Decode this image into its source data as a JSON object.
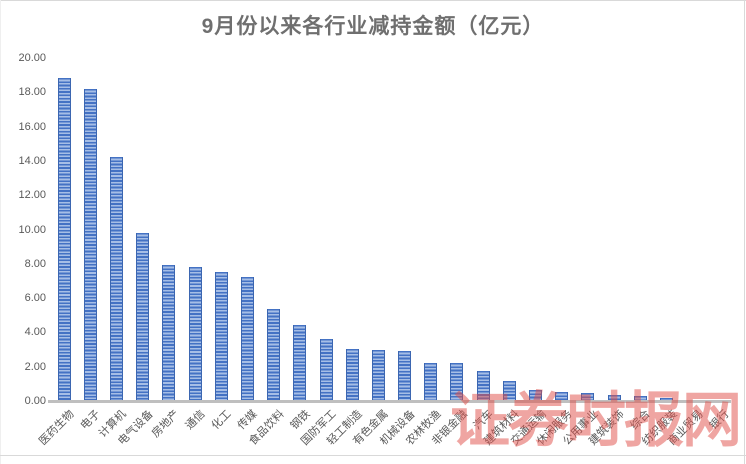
{
  "window": {
    "background": "#ffffff",
    "border_color": "#d9d9d9"
  },
  "chart_data": {
    "type": "bar",
    "title": "9月份以来各行业减持金额（亿元）",
    "title_color": "#6f6f6f",
    "xlabel": "",
    "ylabel": "",
    "categories": [
      "医药生物",
      "电子",
      "计算机",
      "电气设备",
      "房地产",
      "通信",
      "化工",
      "传媒",
      "食品饮料",
      "钢铁",
      "国防军工",
      "轻工制造",
      "有色金属",
      "机械设备",
      "农林牧渔",
      "非银金融",
      "汽车",
      "建筑材料",
      "交通运输",
      "休闲服务",
      "公用事业",
      "建筑装饰",
      "综合",
      "纺织服装",
      "商业贸易",
      "银行"
    ],
    "values": [
      18.85,
      18.2,
      14.2,
      9.8,
      7.95,
      7.8,
      7.5,
      7.25,
      5.35,
      4.45,
      3.6,
      3.05,
      3.0,
      2.9,
      2.2,
      2.2,
      1.75,
      1.15,
      0.65,
      0.55,
      0.45,
      0.35,
      0.3,
      0.15,
      0.05,
      0.02
    ],
    "ylim": [
      0,
      20
    ],
    "ytick_step": 2,
    "ytick_labels": [
      "20.00",
      "18.00",
      "16.00",
      "14.00",
      "12.00",
      "10.00",
      "8.00",
      "6.00",
      "4.00",
      "2.00",
      "0.00"
    ],
    "grid": false,
    "legend": false,
    "tick_label_color": "#595959",
    "axis_line_color": "#bfbfbf",
    "bar_stripe_dark": "#4472c4",
    "bar_stripe_light": "#a6bee6",
    "bar_edge": "#3b66b1"
  },
  "watermark": {
    "text": "证券时报网",
    "color": "rgba(224,76,70,0.5)"
  }
}
